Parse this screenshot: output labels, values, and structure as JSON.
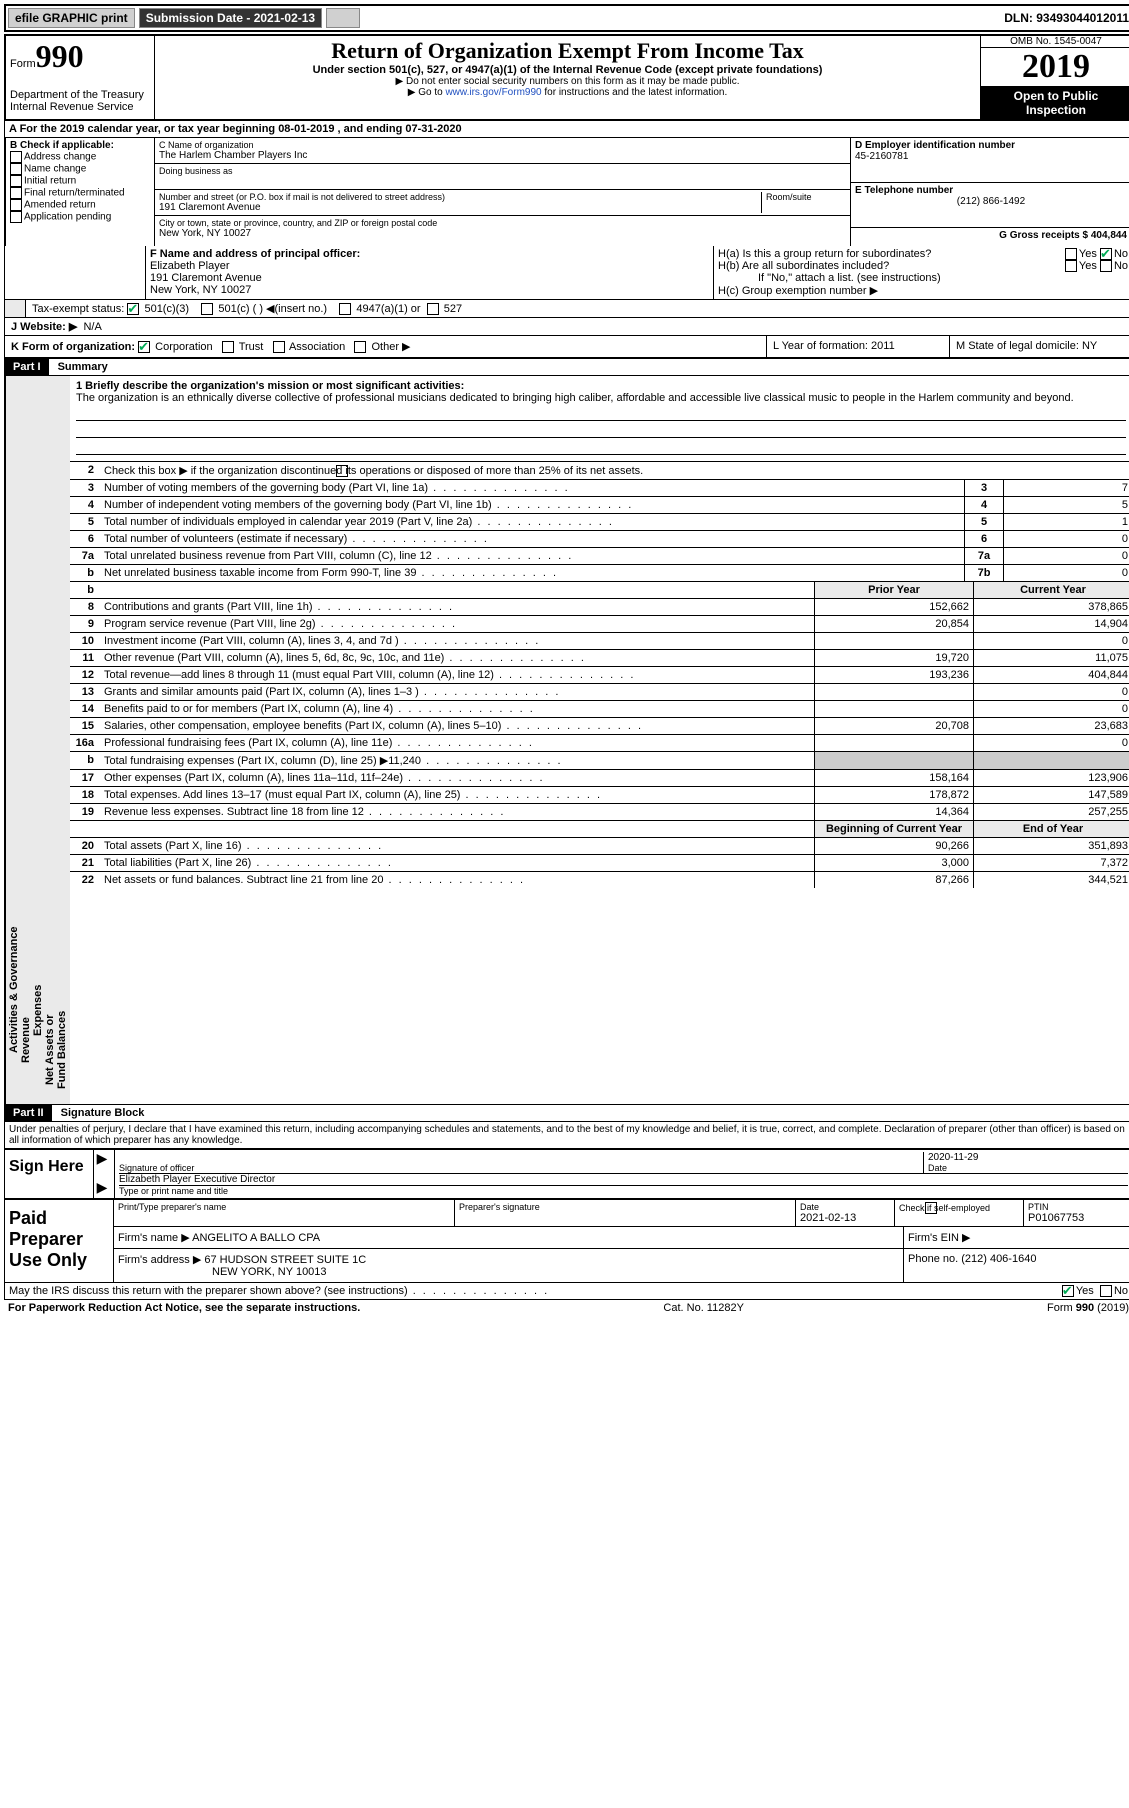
{
  "topbar": {
    "efile": "efile GRAPHIC print",
    "submission_label": "Submission Date - 2021-02-13",
    "dln": "DLN: 93493044012011"
  },
  "header": {
    "form_prefix": "Form",
    "form_number": "990",
    "dept": "Department of the Treasury",
    "irs": "Internal Revenue Service",
    "title": "Return of Organization Exempt From Income Tax",
    "subtitle": "Under section 501(c), 527, or 4947(a)(1) of the Internal Revenue Code (except private foundations)",
    "instr1": "▶ Do not enter social security numbers on this form as it may be made public.",
    "instr2_pre": "▶ Go to ",
    "instr2_link": "www.irs.gov/Form990",
    "instr2_post": " for instructions and the latest information.",
    "omb": "OMB No. 1545-0047",
    "year": "2019",
    "open_public": "Open to Public Inspection"
  },
  "lineA": "A For the 2019 calendar year, or tax year beginning 08-01-2019   , and ending 07-31-2020",
  "boxB": {
    "label": "B Check if applicable:",
    "opts": [
      "Address change",
      "Name change",
      "Initial return",
      "Final return/terminated",
      "Amended return",
      "Application pending"
    ]
  },
  "boxC": {
    "name_label": "C Name of organization",
    "name": "The Harlem Chamber Players Inc",
    "dba_label": "Doing business as",
    "street_label": "Number and street (or P.O. box if mail is not delivered to street address)",
    "room_label": "Room/suite",
    "street": "191 Claremont Avenue",
    "city_label": "City or town, state or province, country, and ZIP or foreign postal code",
    "city": "New York, NY  10027"
  },
  "boxD": {
    "label": "D Employer identification number",
    "value": "45-2160781"
  },
  "boxE": {
    "label": "E Telephone number",
    "value": "(212) 866-1492"
  },
  "boxG": {
    "label": "G Gross receipts $ 404,844"
  },
  "boxF": {
    "label": "F  Name and address of principal officer:",
    "name": "Elizabeth Player",
    "addr1": "191 Claremont Avenue",
    "addr2": "New York, NY  10027"
  },
  "boxH": {
    "a": "H(a)  Is this a group return for subordinates?",
    "b": "H(b)  Are all subordinates included?",
    "b_note": "If \"No,\" attach a list. (see instructions)",
    "c": "H(c)  Group exemption number ▶",
    "yes": "Yes",
    "no": "No"
  },
  "boxI": {
    "label": "Tax-exempt status:",
    "o1": "501(c)(3)",
    "o2": "501(c) (  ) ◀(insert no.)",
    "o3": "4947(a)(1) or",
    "o4": "527"
  },
  "boxJ": {
    "label": "J   Website: ▶",
    "value": "N/A"
  },
  "boxK": {
    "label": "K Form of organization:",
    "o1": "Corporation",
    "o2": "Trust",
    "o3": "Association",
    "o4": "Other ▶"
  },
  "boxL": {
    "label": "L Year of formation: 2011"
  },
  "boxM": {
    "label": "M State of legal domicile: NY"
  },
  "part1": {
    "tag": "Part I",
    "title": "Summary",
    "line1_label": "1  Briefly describe the organization's mission or most significant activities:",
    "line1_text": "The organization is an ethnically diverse collective of professional musicians dedicated to bringing high caliber, affordable and accessible live classical music to people in the Harlem community and beyond.",
    "line2": "Check this box ▶       if the organization discontinued its operations or disposed of more than 25% of its net assets.",
    "prior_year": "Prior Year",
    "current_year": "Current Year",
    "beg_year": "Beginning of Current Year",
    "end_year": "End of Year"
  },
  "sections": {
    "ag": "Activities & Governance",
    "rev": "Revenue",
    "exp": "Expenses",
    "na": "Net Assets or Fund Balances"
  },
  "lines_simple": [
    {
      "n": "3",
      "t": "Number of voting members of the governing body (Part VI, line 1a)",
      "box": "3",
      "v": "7"
    },
    {
      "n": "4",
      "t": "Number of independent voting members of the governing body (Part VI, line 1b)",
      "box": "4",
      "v": "5"
    },
    {
      "n": "5",
      "t": "Total number of individuals employed in calendar year 2019 (Part V, line 2a)",
      "box": "5",
      "v": "1"
    },
    {
      "n": "6",
      "t": "Total number of volunteers (estimate if necessary)",
      "box": "6",
      "v": "0"
    },
    {
      "n": "7a",
      "t": "Total unrelated business revenue from Part VIII, column (C), line 12",
      "box": "7a",
      "v": "0"
    },
    {
      "n": "b",
      "t": "Net unrelated business taxable income from Form 990-T, line 39",
      "box": "7b",
      "v": "0"
    }
  ],
  "lines_rev": [
    {
      "n": "8",
      "t": "Contributions and grants (Part VIII, line 1h)",
      "p": "152,662",
      "c": "378,865"
    },
    {
      "n": "9",
      "t": "Program service revenue (Part VIII, line 2g)",
      "p": "20,854",
      "c": "14,904"
    },
    {
      "n": "10",
      "t": "Investment income (Part VIII, column (A), lines 3, 4, and 7d )",
      "p": "",
      "c": "0"
    },
    {
      "n": "11",
      "t": "Other revenue (Part VIII, column (A), lines 5, 6d, 8c, 9c, 10c, and 11e)",
      "p": "19,720",
      "c": "11,075"
    },
    {
      "n": "12",
      "t": "Total revenue—add lines 8 through 11 (must equal Part VIII, column (A), line 12)",
      "p": "193,236",
      "c": "404,844"
    }
  ],
  "lines_exp": [
    {
      "n": "13",
      "t": "Grants and similar amounts paid (Part IX, column (A), lines 1–3 )",
      "p": "",
      "c": "0"
    },
    {
      "n": "14",
      "t": "Benefits paid to or for members (Part IX, column (A), line 4)",
      "p": "",
      "c": "0"
    },
    {
      "n": "15",
      "t": "Salaries, other compensation, employee benefits (Part IX, column (A), lines 5–10)",
      "p": "20,708",
      "c": "23,683"
    },
    {
      "n": "16a",
      "t": "Professional fundraising fees (Part IX, column (A), line 11e)",
      "p": "",
      "c": "0"
    },
    {
      "n": "b",
      "t": "Total fundraising expenses (Part IX, column (D), line 25) ▶11,240",
      "p": "SHADE",
      "c": "SHADE"
    },
    {
      "n": "17",
      "t": "Other expenses (Part IX, column (A), lines 11a–11d, 11f–24e)",
      "p": "158,164",
      "c": "123,906"
    },
    {
      "n": "18",
      "t": "Total expenses. Add lines 13–17 (must equal Part IX, column (A), line 25)",
      "p": "178,872",
      "c": "147,589"
    },
    {
      "n": "19",
      "t": "Revenue less expenses. Subtract line 18 from line 12",
      "p": "14,364",
      "c": "257,255"
    }
  ],
  "lines_na": [
    {
      "n": "20",
      "t": "Total assets (Part X, line 16)",
      "p": "90,266",
      "c": "351,893"
    },
    {
      "n": "21",
      "t": "Total liabilities (Part X, line 26)",
      "p": "3,000",
      "c": "7,372"
    },
    {
      "n": "22",
      "t": "Net assets or fund balances. Subtract line 21 from line 20",
      "p": "87,266",
      "c": "344,521"
    }
  ],
  "part2": {
    "tag": "Part II",
    "title": "Signature Block",
    "decl": "Under penalties of perjury, I declare that I have examined this return, including accompanying schedules and statements, and to the best of my knowledge and belief, it is true, correct, and complete. Declaration of preparer (other than officer) is based on all information of which preparer has any knowledge."
  },
  "sign": {
    "sign_here": "Sign Here",
    "sig_officer": "Signature of officer",
    "date_label": "Date",
    "date": "2020-11-29",
    "name_title": "Elizabeth Player  Executive Director",
    "type_label": "Type or print name and title"
  },
  "preparer": {
    "label": "Paid Preparer Use Only",
    "print_name_label": "Print/Type preparer's name",
    "sig_label": "Preparer's signature",
    "date_label": "Date",
    "date": "2021-02-13",
    "check_label": "Check        if self-employed",
    "ptin_label": "PTIN",
    "ptin": "P01067753",
    "firm_name_label": "Firm's name    ▶",
    "firm_name": "ANGELITO A BALLO CPA",
    "firm_ein_label": "Firm's EIN ▶",
    "firm_addr_label": "Firm's address ▶",
    "firm_addr1": "67 HUDSON STREET SUITE 1C",
    "firm_addr2": "NEW YORK, NY  10013",
    "phone_label": "Phone no. (212) 406-1640"
  },
  "bottom": {
    "discuss": "May the IRS discuss this return with the preparer shown above? (see instructions)",
    "paperwork": "For Paperwork Reduction Act Notice, see the separate instructions.",
    "cat": "Cat. No. 11282Y",
    "form": "Form 990 (2019)",
    "yes": "Yes",
    "no": "No"
  }
}
